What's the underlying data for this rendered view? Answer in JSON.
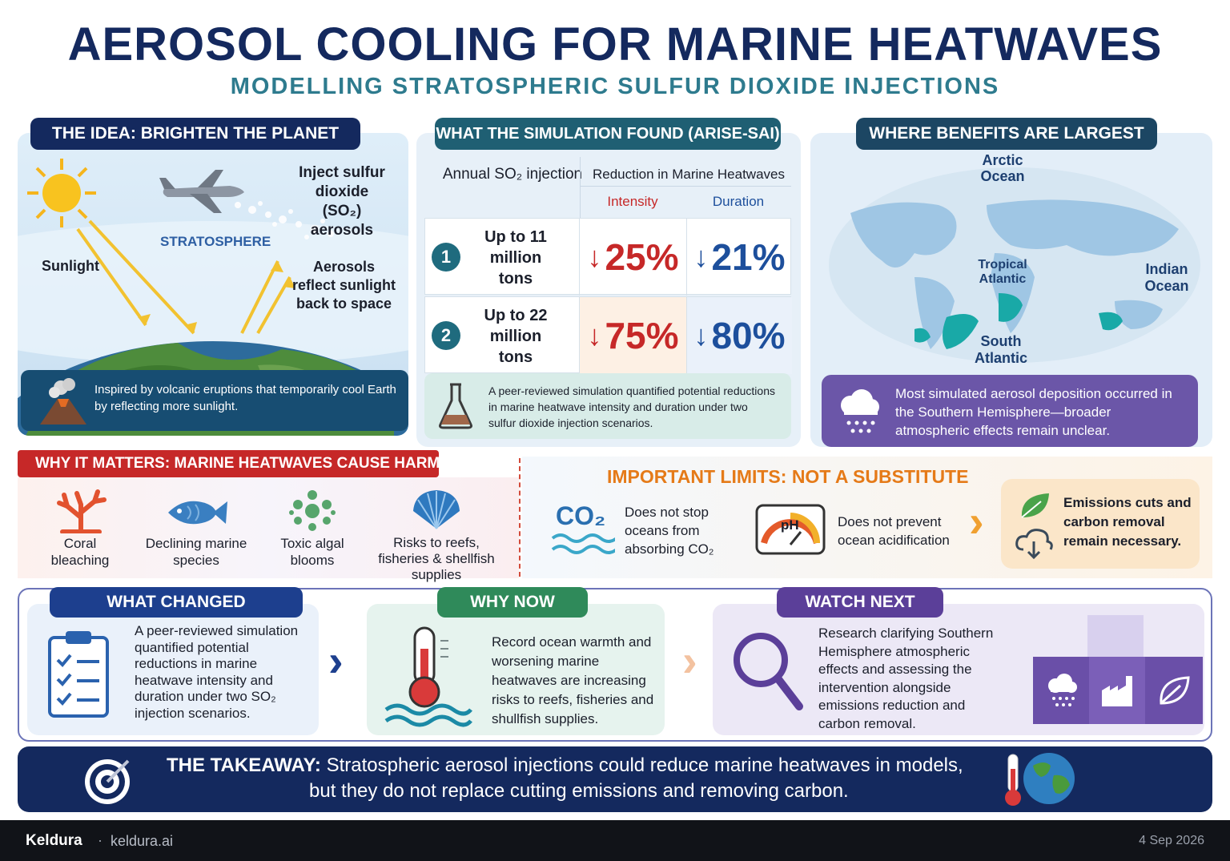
{
  "header": {
    "title": "AEROSOL COOLING FOR MARINE HEATWAVES",
    "subtitle": "MODELLING STRATOSPHERIC SULFUR DIOXIDE INJECTIONS"
  },
  "idea": {
    "heading": "THE IDEA: BRIGHTEN THE PLANET",
    "inject_label": "Inject sulfur dioxide (SO₂) aerosols",
    "stratosphere_label": "STRATOSPHERE",
    "sunlight_label": "Sunlight",
    "reflect_label": "Aerosols reflect sunlight back to space",
    "note": "Inspired by volcanic eruptions that temporarily cool Earth by reflecting more sunlight."
  },
  "simulation": {
    "heading": "WHAT THE SIMULATION FOUND (ARISE-SAI)",
    "col_injection": "Annual SO₂ injection",
    "col_reduction": "Reduction in Marine Heatwaves",
    "col_intensity": "Intensity",
    "col_duration": "Duration",
    "rows": [
      {
        "index": "1",
        "amount": "Up to 11 million tons",
        "intensity": "25%",
        "duration": "21%"
      },
      {
        "index": "2",
        "amount": "Up to 22 million tons",
        "intensity": "75%",
        "duration": "80%"
      }
    ],
    "note": "A peer-reviewed simulation quantified potential reductions in marine heatwave intensity and duration under two sulfur dioxide injection scenarios."
  },
  "benefits": {
    "heading": "WHERE BENEFITS ARE LARGEST",
    "labels": {
      "arctic": "Arctic Ocean",
      "tropical": "Tropical Atlantic",
      "indian": "Indian Ocean",
      "south_atlantic": "South Atlantic"
    },
    "note": "Most simulated aerosol deposition occurred in the Southern Hemisphere—broader atmospheric effects remain unclear."
  },
  "matters": {
    "heading": "WHY IT MATTERS: MARINE HEATWAVES CAUSE HARM",
    "items": [
      {
        "label": "Coral bleaching",
        "icon": "coral-icon"
      },
      {
        "label": "Declining marine species",
        "icon": "fish-icon"
      },
      {
        "label": "Toxic algal blooms",
        "icon": "algae-icon"
      },
      {
        "label": "Risks to reefs, fisheries & shellfish supplies",
        "icon": "shell-icon"
      }
    ]
  },
  "limits": {
    "heading": "IMPORTANT LIMITS: NOT A SUBSTITUTE",
    "co2_glyph": "CO₂",
    "item1": "Does not stop oceans from absorbing CO₂",
    "ph_glyph": "pH",
    "item2": "Does not prevent ocean acidification",
    "item3": "Emissions cuts and carbon removal remain necessary."
  },
  "changed": {
    "heading": "WHAT CHANGED",
    "text": "A peer-reviewed simulation quantified potential reductions in marine heatwave intensity and duration under two SO₂ injection scenarios."
  },
  "whynow": {
    "heading": "WHY NOW",
    "text": "Record ocean warmth and worsening marine heatwaves are increasing risks to reefs, fisheries and shullfish supplies."
  },
  "watch": {
    "heading": "WATCH NEXT",
    "text": "Research clarifying Southern Hemisphere atmospheric effects and assessing the intervention alongside emissions reduction and carbon removal."
  },
  "takeaway": {
    "label": "THE TAKEAWAY:",
    "line1": "Stratospheric aerosol injections could reduce marine heatwaves in models,",
    "line2": "but they do not replace cutting emissions and removing carbon."
  },
  "footer": {
    "brand": "Keldura",
    "separator": "·",
    "url": "keldura.ai",
    "date": "4 Sep 2026"
  },
  "colors": {
    "navy": "#14295e",
    "teal": "#1f6b7e",
    "red": "#c62828",
    "blue": "#1d4f9c",
    "orange": "#e57a18",
    "green": "#2a8a5e",
    "purple": "#5b3f99"
  }
}
